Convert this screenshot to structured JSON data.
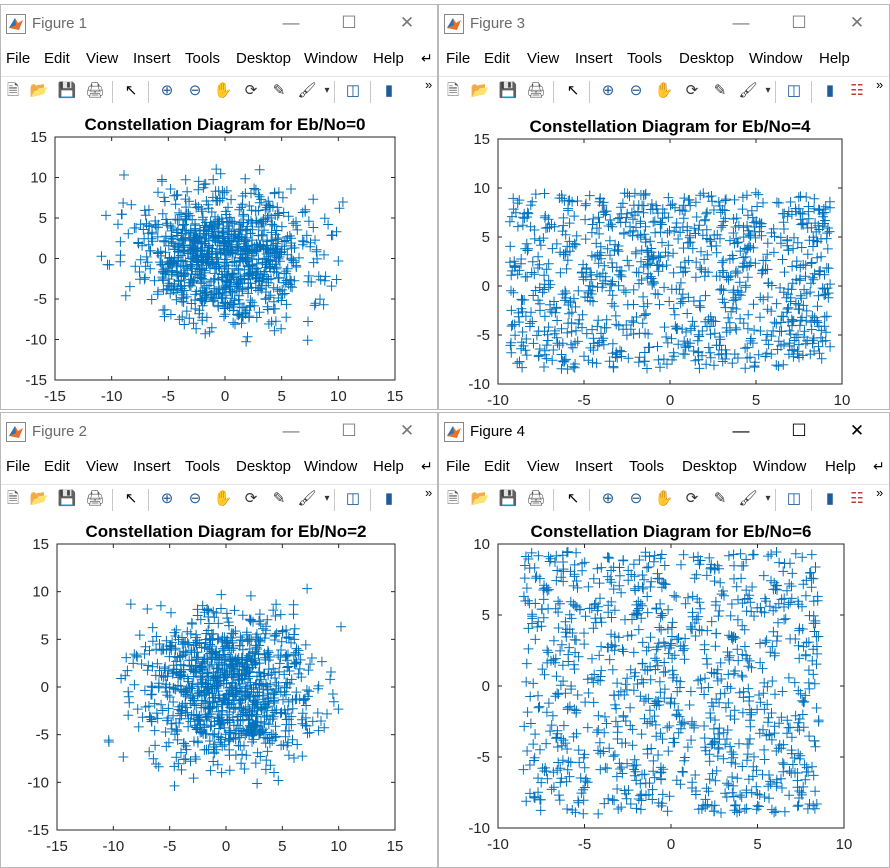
{
  "windows": [
    {
      "id": "w1",
      "title": "Figure 1",
      "active": false,
      "menu": [
        "File",
        "Edit",
        "View",
        "Insert",
        "Tools",
        "Desktop",
        "Window",
        "Help"
      ],
      "plot": {
        "title": "Constellation Diagram for Eb/No=0",
        "xlim": [
          -15,
          15
        ],
        "ylim": [
          -15,
          15
        ],
        "xticks": [
          "-15",
          "-10",
          "-5",
          "0",
          "5",
          "10",
          "15"
        ],
        "yticks": [
          "15",
          "10",
          "5",
          "0",
          "-5",
          "-10",
          "-15"
        ],
        "cloud": {
          "xmin": -11,
          "xmax": 11,
          "ymin": -10.5,
          "ymax": 11.5
        }
      }
    },
    {
      "id": "w3",
      "title": "Figure 3",
      "active": false,
      "menu": [
        "File",
        "Edit",
        "View",
        "Insert",
        "Tools",
        "Desktop",
        "Window",
        "Help"
      ],
      "plot": {
        "title": "Constellation Diagram for Eb/No=4",
        "xlim": [
          -10,
          10
        ],
        "ylim": [
          -10,
          15
        ],
        "xticks": [
          "-10",
          "-5",
          "0",
          "5",
          "10"
        ],
        "yticks": [
          "15",
          "10",
          "5",
          "0",
          "-5",
          "-10"
        ],
        "cloud": {
          "xmin": -9.8,
          "xmax": 9.8,
          "ymin": -9,
          "ymax": 10
        }
      }
    },
    {
      "id": "w2",
      "title": "Figure 2",
      "active": false,
      "menu": [
        "File",
        "Edit",
        "View",
        "Insert",
        "Tools",
        "Desktop",
        "Window",
        "Help"
      ],
      "plot": {
        "title": "Constellation Diagram for Eb/No=2",
        "xlim": [
          -15,
          15
        ],
        "ylim": [
          -15,
          15
        ],
        "xticks": [
          "-15",
          "-10",
          "-5",
          "0",
          "5",
          "10",
          "15"
        ],
        "yticks": [
          "15",
          "10",
          "5",
          "0",
          "-5",
          "-10",
          "-15"
        ],
        "cloud": {
          "xmin": -10.5,
          "xmax": 10.5,
          "ymin": -10.5,
          "ymax": 10.5
        }
      }
    },
    {
      "id": "w4",
      "title": "Figure 4",
      "active": true,
      "menu": [
        "File",
        "Edit",
        "View",
        "Insert",
        "Tools",
        "Desktop",
        "Window",
        "Help"
      ],
      "plot": {
        "title": "Constellation Diagram for Eb/No=6",
        "xlim": [
          -10,
          10
        ],
        "ylim": [
          -10,
          10
        ],
        "xticks": [
          "-10",
          "-5",
          "0",
          "5",
          "10"
        ],
        "yticks": [
          "10",
          "5",
          "0",
          "-5",
          "-10"
        ],
        "cloud": {
          "xmin": -9,
          "xmax": 9,
          "ymin": -9.5,
          "ymax": 10
        }
      }
    }
  ],
  "colors": {
    "marker": "#0072bd"
  },
  "chart_data": [
    {
      "type": "scatter",
      "title": "Constellation Diagram for Eb/No=0",
      "xlim": [
        -15,
        15
      ],
      "ylim": [
        -15,
        15
      ],
      "marker": "+",
      "point_count_approx": 1000
    },
    {
      "type": "scatter",
      "title": "Constellation Diagram for Eb/No=4",
      "xlim": [
        -10,
        10
      ],
      "ylim": [
        -10,
        15
      ],
      "marker": "+",
      "point_count_approx": 1000
    },
    {
      "type": "scatter",
      "title": "Constellation Diagram for Eb/No=2",
      "xlim": [
        -15,
        15
      ],
      "ylim": [
        -15,
        15
      ],
      "marker": "+",
      "point_count_approx": 1000
    },
    {
      "type": "scatter",
      "title": "Constellation Diagram for Eb/No=6",
      "xlim": [
        -10,
        10
      ],
      "ylim": [
        -10,
        10
      ],
      "marker": "+",
      "point_count_approx": 1000
    }
  ]
}
